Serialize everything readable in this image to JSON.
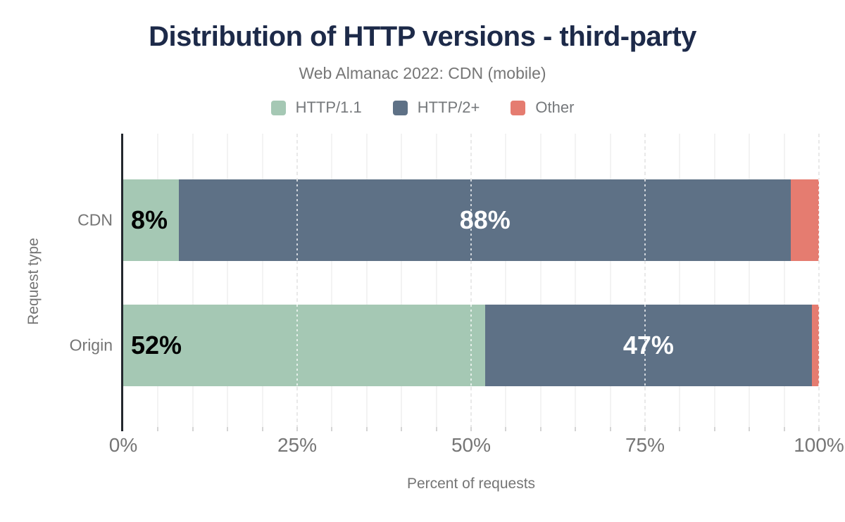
{
  "chart_data": {
    "type": "bar",
    "orientation": "horizontal",
    "stacked": true,
    "title": "Distribution of HTTP versions - third-party",
    "subtitle": "Web Almanac 2022: CDN (mobile)",
    "categories": [
      "CDN",
      "Origin"
    ],
    "series": [
      {
        "name": "HTTP/1.1",
        "color": "#a5c8b4",
        "values": [
          8,
          52
        ]
      },
      {
        "name": "HTTP/2+",
        "color": "#5e7186",
        "values": [
          88,
          47
        ]
      },
      {
        "name": "Other",
        "color": "#e57c70",
        "values": [
          4,
          1
        ]
      }
    ],
    "data_labels": {
      "format": "{value}%",
      "min_value_to_show": 5,
      "first_segment_color": "#000000",
      "other_segment_color": "#ffffff"
    },
    "xlabel": "Percent of requests",
    "ylabel": "Request type",
    "xlim": [
      0,
      100
    ],
    "x_ticks": [
      {
        "value": 0,
        "label": "0%"
      },
      {
        "value": 25,
        "label": "25%"
      },
      {
        "value": 50,
        "label": "50%"
      },
      {
        "value": 75,
        "label": "75%"
      },
      {
        "value": 100,
        "label": "100%"
      }
    ],
    "minor_tick_step": 5,
    "legend_position": "top",
    "grid": true
  },
  "colors": {
    "background": "#ffffff",
    "title_text": "#1d2a49",
    "subtitle_text": "#767676",
    "axis_text": "#757575",
    "axis_line": "#23272e",
    "grid_minor": "#f3f3f3",
    "grid_major": "#e9e9e9"
  }
}
